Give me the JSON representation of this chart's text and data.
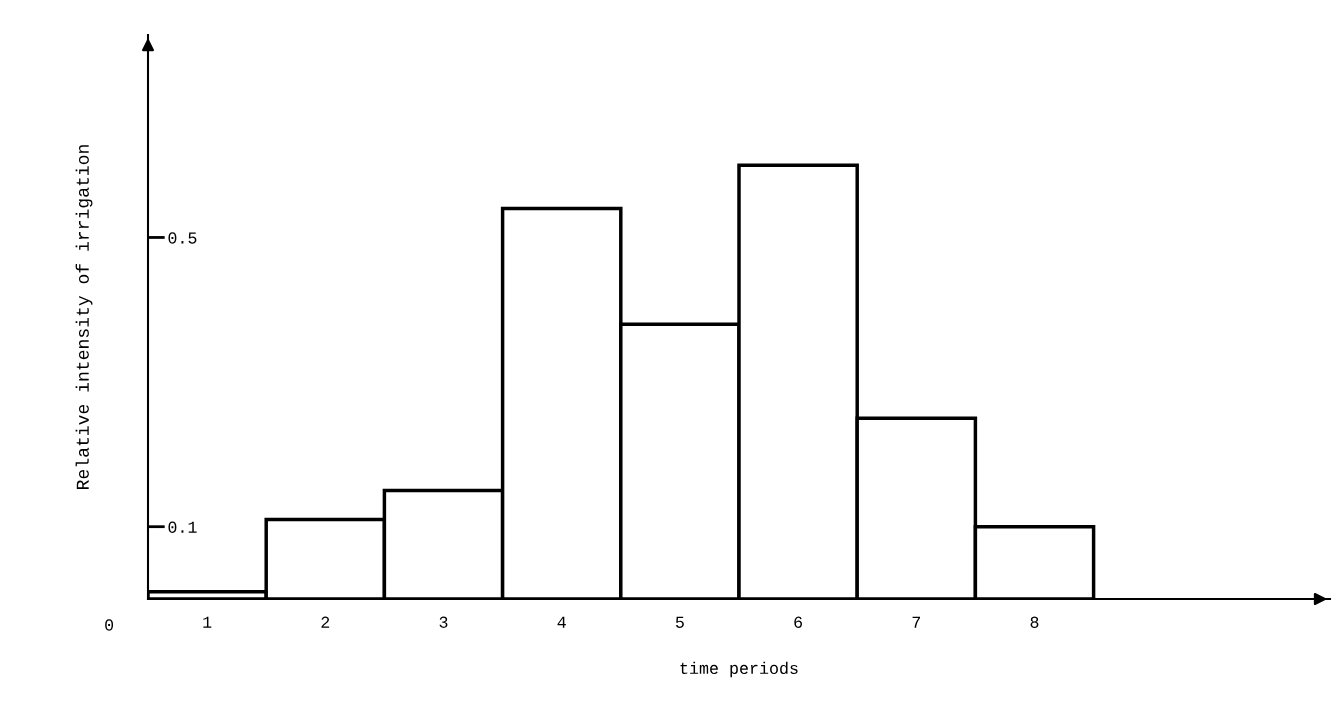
{
  "chart_data": {
    "type": "bar",
    "xlabel": "time periods",
    "ylabel": "Relative intensity of irrigation",
    "categories": [
      "1",
      "2",
      "3",
      "4",
      "5",
      "6",
      "7",
      "8"
    ],
    "values": [
      0.01,
      0.11,
      0.15,
      0.54,
      0.38,
      0.6,
      0.25,
      0.1
    ],
    "color": "#ffffff",
    "ylim": [
      0,
      0.78
    ],
    "yticks": [
      0.1,
      0.5
    ],
    "annotations": [
      "0"
    ]
  }
}
